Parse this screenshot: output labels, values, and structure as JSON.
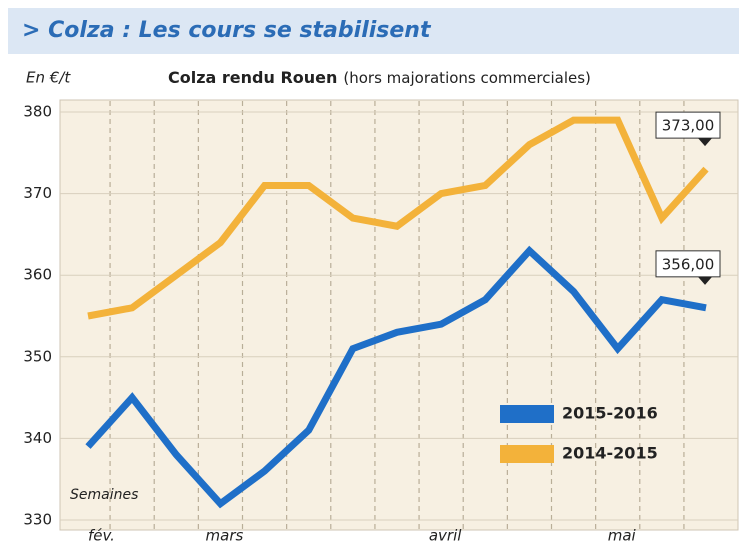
{
  "chart_data": {
    "type": "line",
    "header": "> Colza : Les cours se stabilisent",
    "title": "Colza rendu Rouen",
    "subtitle": "(hors majorations commerciales)",
    "y_label": "En €/t",
    "x_label": "Semaines",
    "categories": [
      "fév.",
      null,
      null,
      "mars",
      null,
      null,
      null,
      null,
      "avril",
      null,
      null,
      null,
      "mai",
      null,
      null
    ],
    "series": [
      {
        "name": "2015-2016",
        "color": "#1f6fc8",
        "values": [
          339,
          345,
          338,
          332,
          336,
          341,
          351,
          353,
          354,
          357,
          363,
          358,
          351,
          357,
          356
        ],
        "value_labels": [
          null,
          null,
          null,
          null,
          null,
          null,
          null,
          null,
          null,
          null,
          null,
          null,
          null,
          null,
          "356,00"
        ]
      },
      {
        "name": "2014-2015",
        "color": "#f3b23a",
        "values": [
          355,
          356,
          360,
          364,
          371,
          371,
          367,
          366,
          370,
          371,
          376,
          379,
          379,
          367,
          373
        ],
        "value_labels": [
          null,
          null,
          null,
          null,
          null,
          null,
          null,
          null,
          null,
          null,
          null,
          null,
          null,
          null,
          "373,00"
        ]
      }
    ],
    "ylim": [
      330,
      380
    ],
    "yticks": [
      330,
      340,
      350,
      360,
      370,
      380
    ],
    "grid": true
  }
}
